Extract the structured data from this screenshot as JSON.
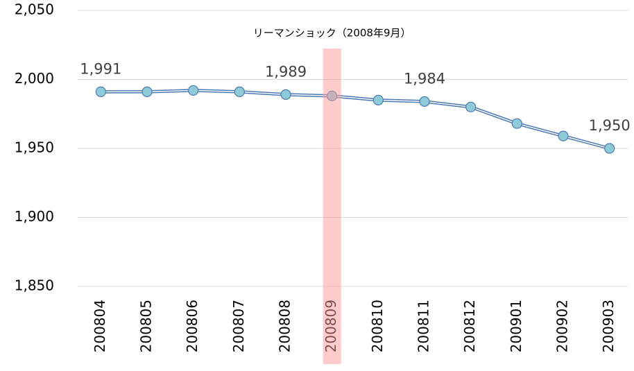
{
  "chart_data": {
    "type": "line",
    "categories": [
      "200804",
      "200805",
      "200806",
      "200807",
      "200808",
      "200809",
      "200810",
      "200811",
      "200812",
      "200901",
      "200902",
      "200903"
    ],
    "series": [
      {
        "color": "#4a7ab5",
        "marker_color": "#8ecad8",
        "values": [
          1991,
          1991,
          1992,
          1991,
          1989,
          1988,
          1985,
          1984,
          1980,
          1968,
          1959,
          1950
        ],
        "value_labels": [
          "1,991",
          null,
          null,
          null,
          "1,989",
          null,
          null,
          "1,984",
          null,
          null,
          null,
          "1,950"
        ]
      }
    ],
    "ylim": [
      1850,
      2050
    ],
    "yticks": [
      {
        "value": 1850,
        "label": "1,850"
      },
      {
        "value": 1900,
        "label": "1,900"
      },
      {
        "value": 1950,
        "label": "1,950"
      },
      {
        "value": 2000,
        "label": "2,000"
      },
      {
        "value": 2050,
        "label": "2,050"
      }
    ],
    "grid": true,
    "annotation": {
      "text": "リーマンショック（2008年9月）",
      "category": "200809",
      "color": "#ff9999"
    }
  }
}
